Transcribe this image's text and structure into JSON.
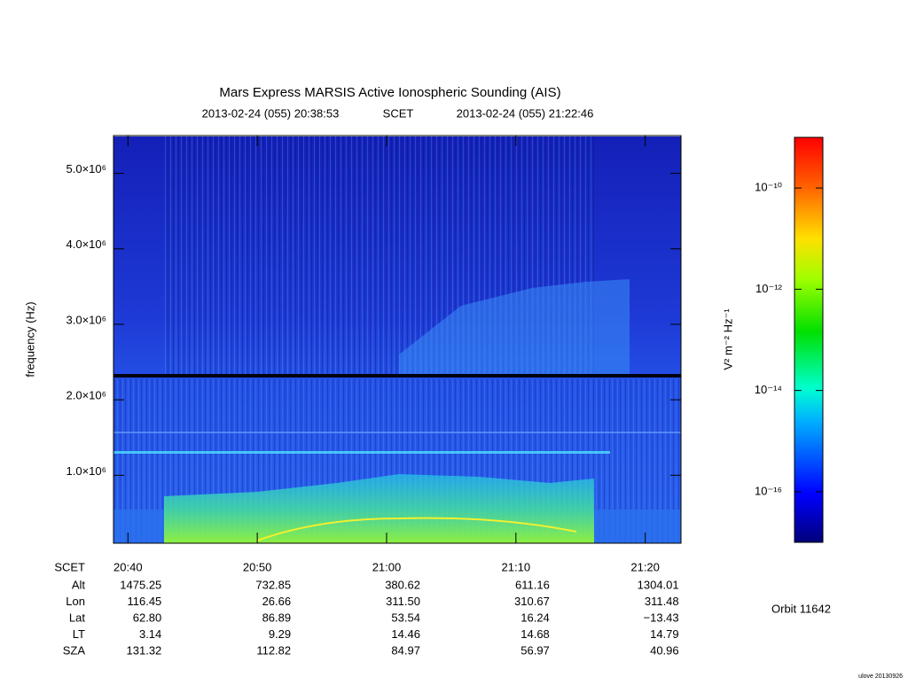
{
  "chart_data": {
    "type": "spectrogram",
    "title": "Mars Express MARSIS Active Ionospheric Sounding (AIS)",
    "subtitle": {
      "start": "2013-02-24 (055) 20:38:53",
      "frame": "SCET",
      "end": "2013-02-24 (055) 21:22:46"
    },
    "y_label": "frequency (Hz)",
    "xlim": [
      1238.883,
      1282.767
    ],
    "xticks": [
      {
        "value": 1240,
        "label": "20:40"
      },
      {
        "value": 1250,
        "label": "20:50"
      },
      {
        "value": 1260,
        "label": "21:00"
      },
      {
        "value": 1270,
        "label": "21:10"
      },
      {
        "value": 1280,
        "label": "21:20"
      }
    ],
    "ylim": [
      100000,
      5500000
    ],
    "yticks": [
      {
        "value": 1000000,
        "label": "1.0×10⁶"
      },
      {
        "value": 2000000,
        "label": "2.0×10⁶"
      },
      {
        "value": 3000000,
        "label": "3.0×10⁶"
      },
      {
        "value": 4000000,
        "label": "4.0×10⁶"
      },
      {
        "value": 5000000,
        "label": "5.0×10⁶"
      }
    ],
    "colorbar": {
      "label": "V² m⁻² Hz⁻¹",
      "log": true,
      "lim": [
        1e-17,
        1e-09
      ],
      "ticks": [
        {
          "value": 1e-16,
          "label": "10⁻¹⁶"
        },
        {
          "value": 1e-14,
          "label": "10⁻¹⁴"
        },
        {
          "value": 1e-12,
          "label": "10⁻¹²"
        },
        {
          "value": 1e-10,
          "label": "10⁻¹⁰"
        }
      ]
    },
    "ephemeris": {
      "x_label": "SCET",
      "rows": [
        {
          "name": "Alt",
          "values": [
            "1475.25",
            "732.85",
            "380.62",
            "611.16",
            "1304.01"
          ]
        },
        {
          "name": "Lon",
          "values": [
            "116.45",
            "26.66",
            "311.50",
            "310.67",
            "311.48"
          ]
        },
        {
          "name": "Lat",
          "values": [
            "62.80",
            "86.89",
            "53.54",
            "16.24",
            "−13.43"
          ]
        },
        {
          "name": "LT",
          "values": [
            "3.14",
            "9.29",
            "14.46",
            "14.68",
            "14.79"
          ]
        },
        {
          "name": "SZA",
          "values": [
            "131.32",
            "112.82",
            "84.97",
            "56.97",
            "40.96"
          ]
        }
      ]
    },
    "orbit": "Orbit 11642",
    "footer": "ulove 20130926"
  }
}
